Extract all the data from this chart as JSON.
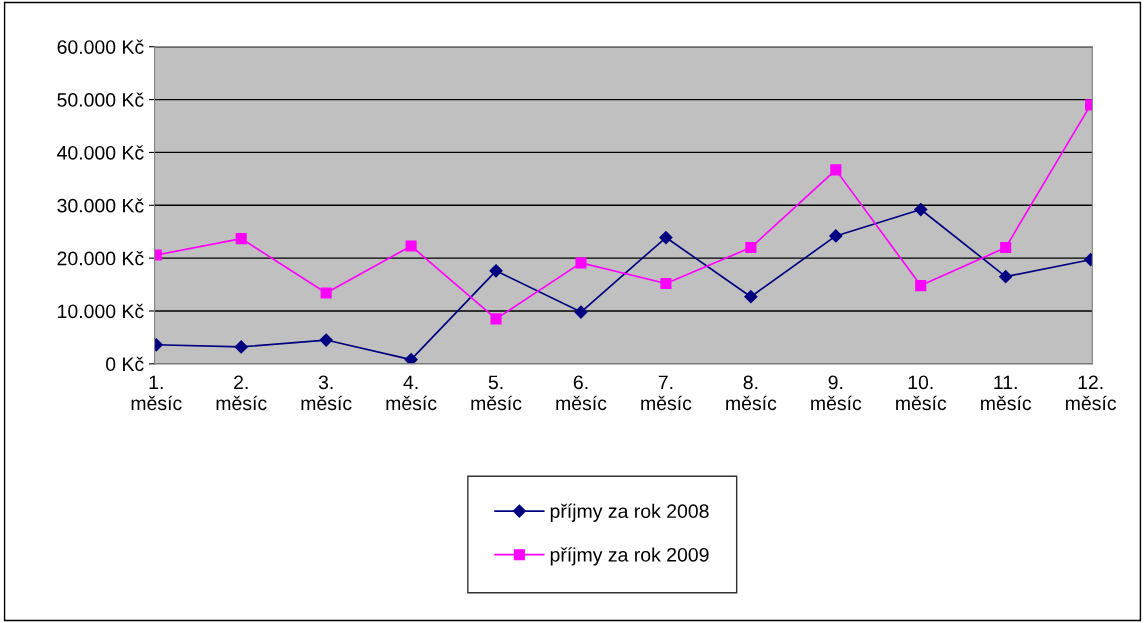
{
  "chart_data": {
    "type": "line",
    "categories": [
      "1. měsíc",
      "2. měsíc",
      "3. měsíc",
      "4. měsíc",
      "5. měsíc",
      "6. měsíc",
      "7. měsíc",
      "8. měsíc",
      "9. měsíc",
      "10. měsíc",
      "11. měsíc",
      "12. měsíc"
    ],
    "series": [
      {
        "name": "příjmy za rok 2008",
        "color": "#000080",
        "marker": "diamond",
        "values": [
          3600,
          3200,
          4500,
          800,
          17600,
          9800,
          23900,
          12700,
          24200,
          29200,
          16500,
          19700
        ]
      },
      {
        "name": "příjmy za rok 2009",
        "color": "#ff00ff",
        "marker": "square",
        "values": [
          20600,
          23700,
          13400,
          22300,
          8500,
          19100,
          15200,
          22000,
          36700,
          14800,
          22000,
          49000
        ]
      }
    ],
    "ylim": [
      0,
      60000
    ],
    "yticks": [
      {
        "value": 0,
        "label": "0 Kč"
      },
      {
        "value": 10000,
        "label": "10.000 Kč"
      },
      {
        "value": 20000,
        "label": "20.000 Kč"
      },
      {
        "value": 30000,
        "label": "30.000 Kč"
      },
      {
        "value": 40000,
        "label": "40.000 Kč"
      },
      {
        "value": 50000,
        "label": "50.000 Kč"
      },
      {
        "value": 60000,
        "label": "60.000 Kč"
      }
    ],
    "grid": "y",
    "legend": "bottom",
    "line_style": "solid"
  }
}
